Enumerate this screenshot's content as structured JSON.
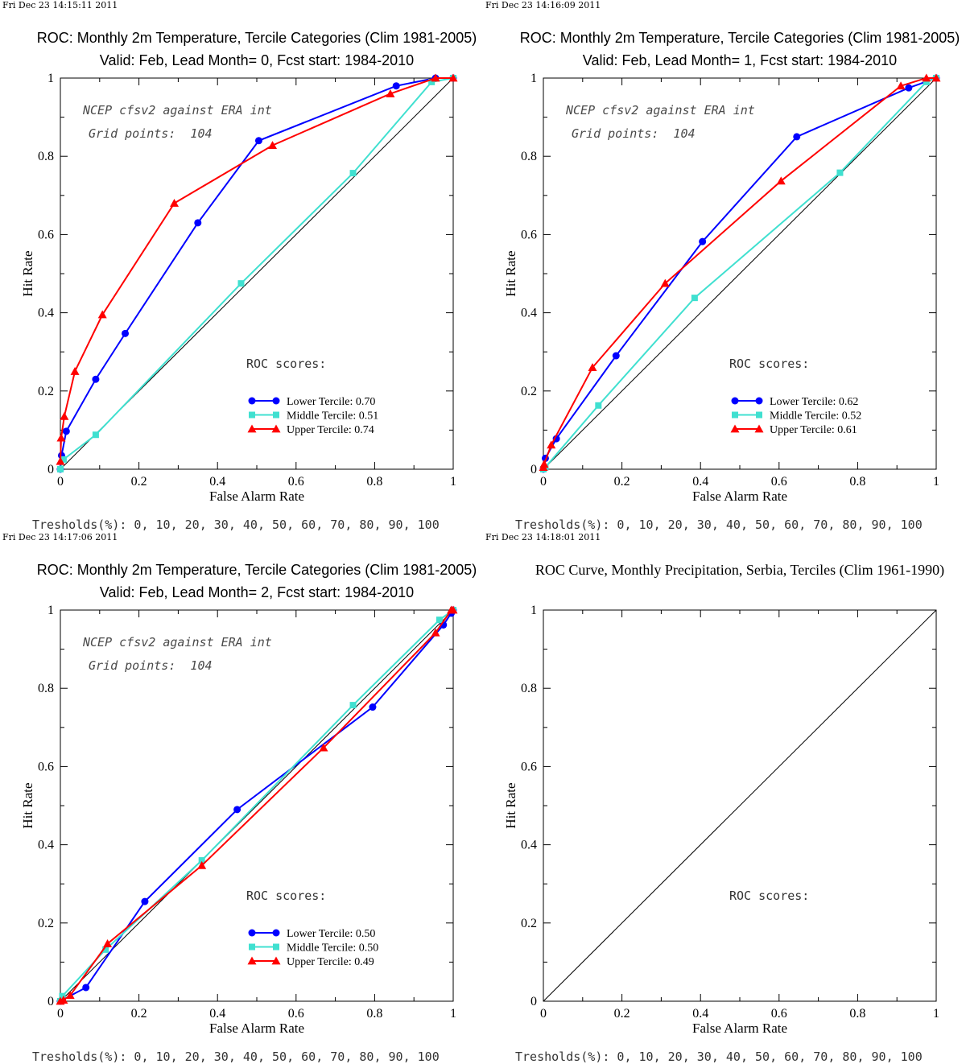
{
  "chart_data": [
    {
      "type": "line",
      "timestamp": "Fri Dec 23 14:15:11 2011",
      "title": "ROC: Monthly 2m Temperature, Tercile Categories (Clim 1981-2005)",
      "subtitle": "Valid: Feb, Lead Month= 0, Fcst start: 1984-2010",
      "xlabel": "False Alarm Rate",
      "ylabel": "Hit Rate",
      "xlim": [
        0,
        1
      ],
      "ylim": [
        0,
        1
      ],
      "xticks": [
        "0",
        "0.2",
        "0.4",
        "0.6",
        "0.8",
        "1"
      ],
      "yticks": [
        "0",
        "0.2",
        "0.4",
        "0.6",
        "0.8",
        "1"
      ],
      "annotations": [
        "NCEP cfsv2 against ERA int",
        "Grid points:  104"
      ],
      "scores_heading": "ROC scores:",
      "footer": "Tresholds(%): 0, 10, 20, 30, 40, 50, 60, 70, 80, 90, 100",
      "series": [
        {
          "name": "Lower Tercile: 0.70",
          "color": "#0000ff",
          "marker": "circle",
          "x": [
            0,
            0.003,
            0.015,
            0.09,
            0.165,
            0.35,
            0.505,
            0.855,
            0.955,
            1
          ],
          "y": [
            0,
            0.035,
            0.097,
            0.23,
            0.347,
            0.63,
            0.84,
            0.98,
            1,
            1
          ]
        },
        {
          "name": "Middle Tercile: 0.51",
          "color": "#40e0d0",
          "marker": "square",
          "x": [
            0,
            0.008,
            0.09,
            0.46,
            0.745,
            0.945,
            1
          ],
          "y": [
            0,
            0.025,
            0.088,
            0.475,
            0.757,
            0.99,
            1
          ]
        },
        {
          "name": "Upper Tercile: 0.74",
          "color": "#ff0000",
          "marker": "triangle",
          "x": [
            0,
            0.002,
            0.01,
            0.037,
            0.107,
            0.29,
            0.54,
            0.84,
            0.955,
            1
          ],
          "y": [
            0.02,
            0.08,
            0.135,
            0.25,
            0.395,
            0.68,
            0.828,
            0.96,
            1,
            1
          ]
        }
      ]
    },
    {
      "type": "line",
      "timestamp": "Fri Dec 23 14:16:09 2011",
      "title": "ROC: Monthly 2m Temperature, Tercile Categories (Clim 1981-2005)",
      "subtitle": "Valid: Feb, Lead Month= 1, Fcst start: 1984-2010",
      "xlabel": "False Alarm Rate",
      "ylabel": "Hit Rate",
      "xlim": [
        0,
        1
      ],
      "ylim": [
        0,
        1
      ],
      "xticks": [
        "0",
        "0.2",
        "0.4",
        "0.6",
        "0.8",
        "1"
      ],
      "yticks": [
        "0",
        "0.2",
        "0.4",
        "0.6",
        "0.8",
        "1"
      ],
      "annotations": [
        "NCEP cfsv2 against ERA int",
        "Grid points:  104"
      ],
      "scores_heading": "ROC scores:",
      "footer": "Tresholds(%): 0, 10, 20, 30, 40, 50, 60, 70, 80, 90, 100",
      "series": [
        {
          "name": "Lower Tercile: 0.62",
          "color": "#0000ff",
          "marker": "circle",
          "x": [
            0,
            0.005,
            0.033,
            0.185,
            0.405,
            0.645,
            0.93,
            1
          ],
          "y": [
            0,
            0.028,
            0.078,
            0.29,
            0.582,
            0.85,
            0.975,
            1
          ]
        },
        {
          "name": "Middle Tercile: 0.52",
          "color": "#40e0d0",
          "marker": "square",
          "x": [
            0,
            0.005,
            0.14,
            0.385,
            0.755,
            0.975,
            1
          ],
          "y": [
            0,
            0.005,
            0.163,
            0.438,
            0.758,
            0.99,
            1
          ]
        },
        {
          "name": "Upper Tercile: 0.61",
          "color": "#ff0000",
          "marker": "triangle",
          "x": [
            0,
            0.002,
            0.02,
            0.125,
            0.31,
            0.605,
            0.91,
            0.975,
            1
          ],
          "y": [
            0.005,
            0.013,
            0.062,
            0.26,
            0.475,
            0.737,
            0.98,
            1,
            1
          ]
        }
      ]
    },
    {
      "type": "line",
      "timestamp": "Fri Dec 23 14:17:06 2011",
      "title": "ROC: Monthly 2m Temperature, Tercile Categories (Clim 1981-2005)",
      "subtitle": "Valid: Feb, Lead Month= 2, Fcst start: 1984-2010",
      "xlabel": "False Alarm Rate",
      "ylabel": "Hit Rate",
      "xlim": [
        0,
        1
      ],
      "ylim": [
        0,
        1
      ],
      "xticks": [
        "0",
        "0.2",
        "0.4",
        "0.6",
        "0.8",
        "1"
      ],
      "yticks": [
        "0",
        "0.2",
        "0.4",
        "0.6",
        "0.8",
        "1"
      ],
      "annotations": [
        "NCEP cfsv2 against ERA int",
        "Grid points:  104"
      ],
      "scores_heading": "ROC scores:",
      "footer": "Tresholds(%): 0, 10, 20, 30, 40, 50, 60, 70, 80, 90, 100",
      "series": [
        {
          "name": "Lower Tercile: 0.50",
          "color": "#0000ff",
          "marker": "circle",
          "x": [
            0,
            0.005,
            0.065,
            0.215,
            0.45,
            0.795,
            0.975,
            0.995,
            1
          ],
          "y": [
            0,
            0.003,
            0.035,
            0.255,
            0.49,
            0.752,
            0.962,
            0.992,
            1
          ]
        },
        {
          "name": "Middle Tercile: 0.50",
          "color": "#40e0d0",
          "marker": "square",
          "x": [
            0,
            0.005,
            0.115,
            0.36,
            0.745,
            0.965,
            1
          ],
          "y": [
            0,
            0.013,
            0.132,
            0.36,
            0.757,
            0.975,
            1
          ]
        },
        {
          "name": "Upper Tercile: 0.49",
          "color": "#ff0000",
          "marker": "triangle",
          "x": [
            0,
            0.008,
            0.025,
            0.12,
            0.36,
            0.67,
            0.955,
            0.995,
            1
          ],
          "y": [
            0,
            0.003,
            0.015,
            0.147,
            0.347,
            0.648,
            0.942,
            1,
            1
          ]
        }
      ]
    },
    {
      "type": "line",
      "timestamp": "Fri Dec 23 14:18:01 2011",
      "title": "ROC Curve, Monthly Precipitation, Serbia, Terciles (Clim 1961-1990)",
      "subtitle": "",
      "xlabel": "False Alarm Rate",
      "ylabel": "Hit Rate",
      "xlim": [
        0,
        1
      ],
      "ylim": [
        0,
        1
      ],
      "xticks": [
        "0",
        "0.2",
        "0.4",
        "0.6",
        "0.8",
        "1"
      ],
      "yticks": [
        "0",
        "0.2",
        "0.4",
        "0.6",
        "0.8",
        "1"
      ],
      "annotations": [],
      "scores_heading": "ROC scores:",
      "footer": "Tresholds(%): 0, 10, 20, 30, 40, 50, 60, 70, 80, 90, 100",
      "series": []
    }
  ]
}
